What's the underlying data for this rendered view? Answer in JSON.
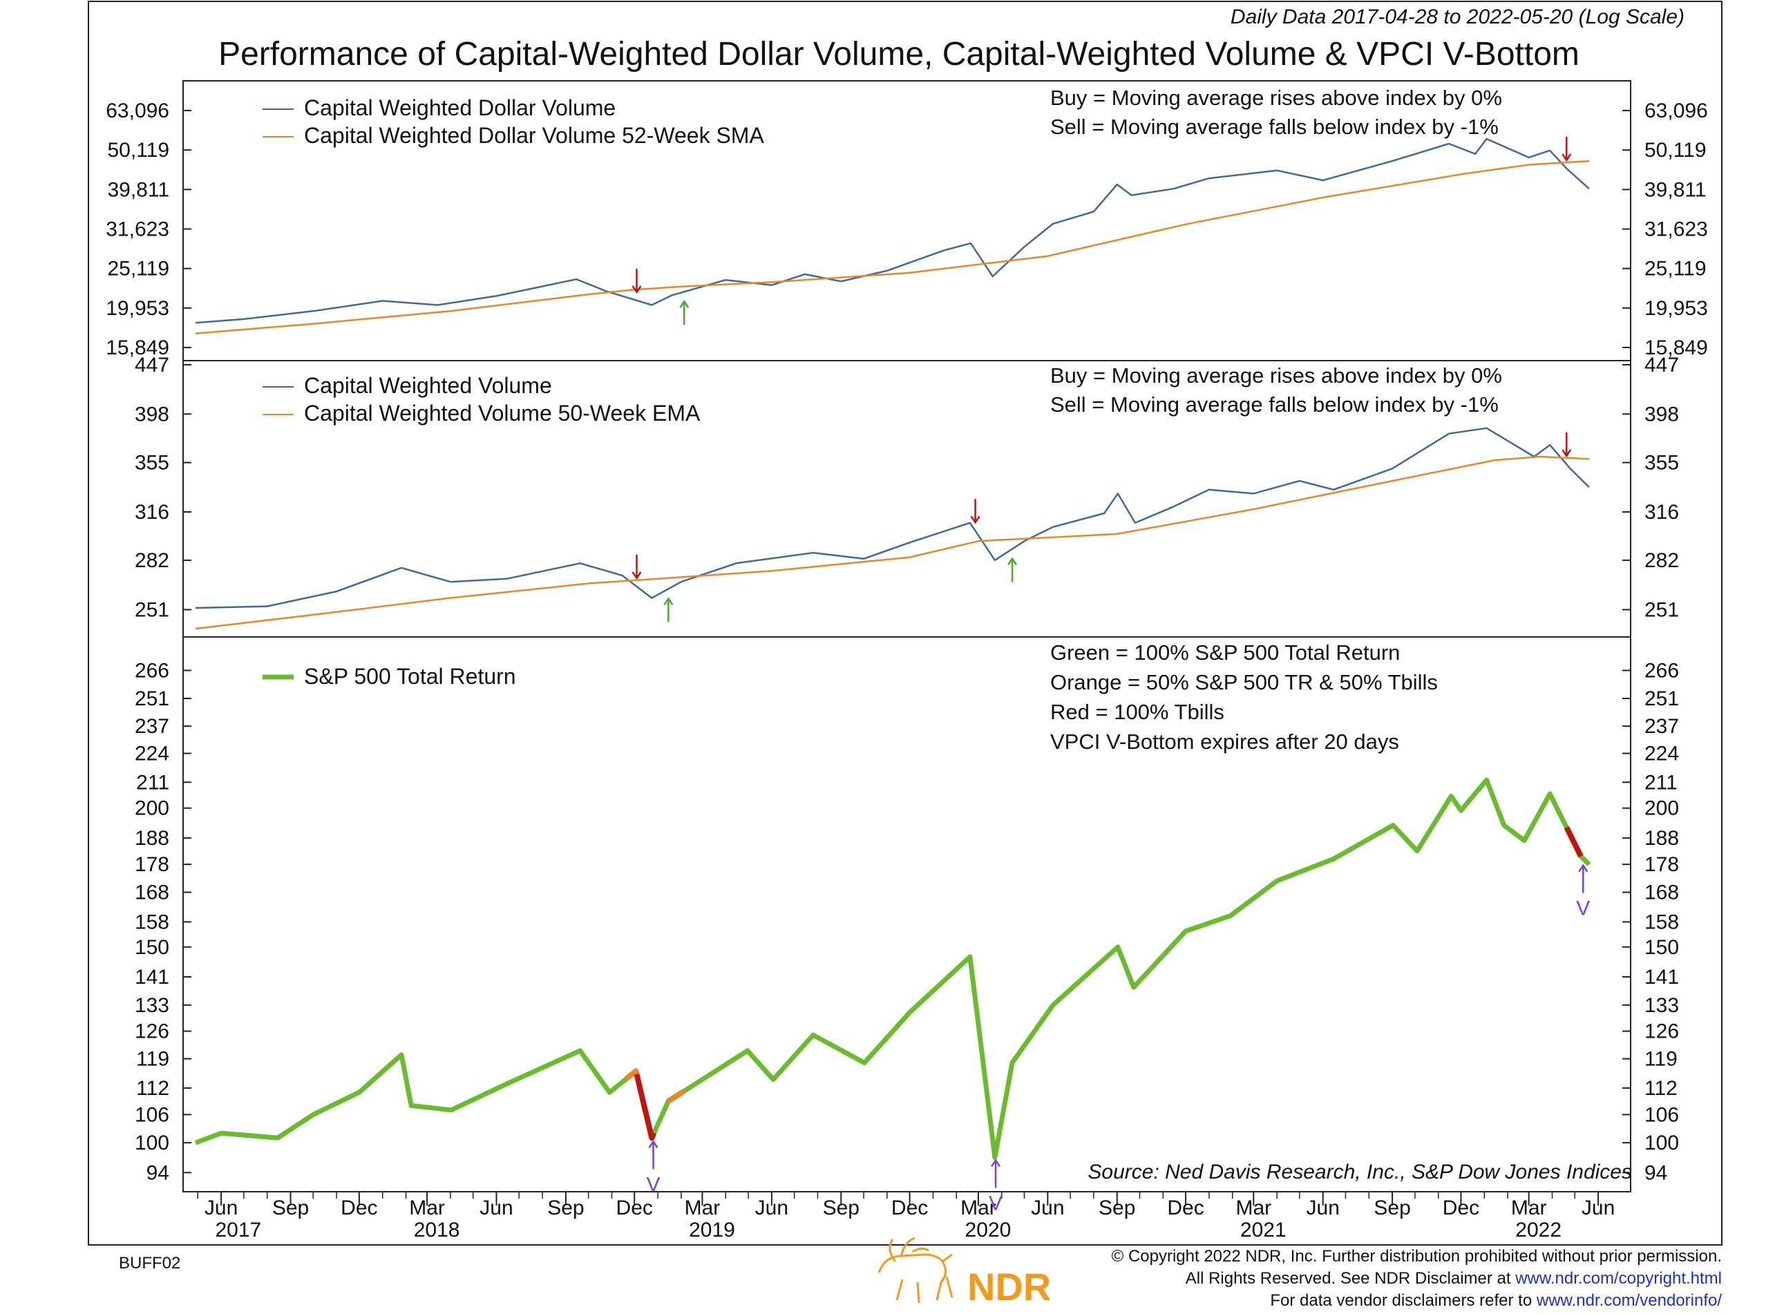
{
  "header": {
    "subtitle": "Daily Data 2017-04-28 to 2022-05-20 (Log Scale)",
    "title": "Performance of Capital-Weighted Dollar Volume, Capital-Weighted Volume & VPCI V-Bottom"
  },
  "colors": {
    "index_line": "#3d6a9c",
    "moving_average": "#e8862a",
    "sp_green": "#6abb2e",
    "sp_orange": "#e8862a",
    "sp_red": "#c0150e",
    "buy_arrow": "#4aa832",
    "sell_arrow": "#c0150e",
    "vbottom_marker": "#7a3fe0",
    "ndr_orange": "#f29a1d",
    "link_blue": "#1a2fd0"
  },
  "x_axis": {
    "months": [
      "Jun",
      "Sep",
      "Dec",
      "Mar",
      "Jun",
      "Sep",
      "Dec",
      "Mar",
      "Jun",
      "Sep",
      "Dec",
      "Mar",
      "Jun",
      "Sep",
      "Dec",
      "Mar",
      "Jun",
      "Sep",
      "Dec",
      "Mar",
      "Jun"
    ],
    "years": [
      "2017",
      "2018",
      "2019",
      "2020",
      "2021",
      "2022"
    ]
  },
  "panel1": {
    "legend": [
      "Capital Weighted Dollar Volume",
      "Capital Weighted Dollar Volume 52-Week SMA"
    ],
    "rule_buy": "Buy = Moving average rises above index by 0%",
    "rule_sell": "Sell = Moving average falls below index by -1%",
    "tick_labels": [
      "63,096",
      "50,119",
      "39,811",
      "31,623",
      "25,119",
      "19,953",
      "15,849"
    ]
  },
  "panel2": {
    "legend": [
      "Capital Weighted Volume",
      "Capital Weighted Volume 50-Week EMA"
    ],
    "rule_buy": "Buy = Moving average rises above index by 0%",
    "rule_sell": "Sell = Moving average falls below index by -1%",
    "tick_labels": [
      "447",
      "398",
      "355",
      "316",
      "282",
      "251"
    ]
  },
  "panel3": {
    "legend": [
      "S&P 500 Total Return"
    ],
    "notes": [
      "Green = 100% S&P 500 Total Return",
      "Orange = 50% S&P 500 TR & 50% Tbills",
      "Red = 100% Tbills",
      "VPCI V-Bottom expires after 20 days"
    ],
    "tick_labels": [
      "266",
      "251",
      "237",
      "224",
      "211",
      "200",
      "188",
      "178",
      "168",
      "158",
      "150",
      "141",
      "133",
      "126",
      "119",
      "112",
      "106",
      "100",
      "94"
    ],
    "vbottom_label": "V",
    "source": "Source:   Ned Davis Research, Inc., S&P Dow Jones Indices"
  },
  "footer": {
    "code": "BUFF02",
    "logo_text": "NDR",
    "copyright_line1": "© Copyright 2022 NDR, Inc. Further distribution prohibited without prior permission.",
    "copyright_line2_prefix": "All Rights Reserved. See NDR Disclaimer at ",
    "copyright_line2_link": "www.ndr.com/copyright.html",
    "copyright_line3_prefix": "For data vendor disclaimers refer to ",
    "copyright_line3_link": "www.ndr.com/vendorinfo/"
  },
  "chart_data": [
    {
      "type": "line",
      "scale": "log",
      "x_range": [
        "2017-04-28",
        "2022-05-20"
      ],
      "ylim": [
        15849,
        63096
      ],
      "series": [
        {
          "name": "Capital Weighted Dollar Volume",
          "points": [
            [
              "2017-04-28",
              18300
            ],
            [
              "2017-07-01",
              18700
            ],
            [
              "2017-10-01",
              19600
            ],
            [
              "2018-01-01",
              20800
            ],
            [
              "2018-03-15",
              20300
            ],
            [
              "2018-06-01",
              21400
            ],
            [
              "2018-09-15",
              23600
            ],
            [
              "2018-10-25",
              22000
            ],
            [
              "2018-12-24",
              20300
            ],
            [
              "2019-01-20",
              21500
            ],
            [
              "2019-04-01",
              23500
            ],
            [
              "2019-06-01",
              22800
            ],
            [
              "2019-07-15",
              24300
            ],
            [
              "2019-09-01",
              23300
            ],
            [
              "2019-11-01",
              24800
            ],
            [
              "2020-01-15",
              27900
            ],
            [
              "2020-02-20",
              29100
            ],
            [
              "2020-03-20",
              24000
            ],
            [
              "2020-05-01",
              28500
            ],
            [
              "2020-06-08",
              32600
            ],
            [
              "2020-08-01",
              35000
            ],
            [
              "2020-09-01",
              41000
            ],
            [
              "2020-09-20",
              38500
            ],
            [
              "2020-11-15",
              40000
            ],
            [
              "2021-01-01",
              42500
            ],
            [
              "2021-04-01",
              44500
            ],
            [
              "2021-06-01",
              42000
            ],
            [
              "2021-09-01",
              47000
            ],
            [
              "2021-11-15",
              52000
            ],
            [
              "2021-12-20",
              49000
            ],
            [
              "2022-01-04",
              53500
            ],
            [
              "2022-03-01",
              48000
            ],
            [
              "2022-03-29",
              50000
            ],
            [
              "2022-04-20",
              45000
            ],
            [
              "2022-05-20",
              40000
            ]
          ]
        },
        {
          "name": "Capital Weighted Dollar Volume 52-Week SMA",
          "points": [
            [
              "2017-04-28",
              17200
            ],
            [
              "2017-10-01",
              18200
            ],
            [
              "2018-04-01",
              19600
            ],
            [
              "2018-10-01",
              21600
            ],
            [
              "2018-12-01",
              22200
            ],
            [
              "2019-02-01",
              22600
            ],
            [
              "2019-06-01",
              23200
            ],
            [
              "2019-12-01",
              24500
            ],
            [
              "2020-06-01",
              27000
            ],
            [
              "2020-12-01",
              32500
            ],
            [
              "2021-06-01",
              38000
            ],
            [
              "2021-12-01",
              43500
            ],
            [
              "2022-03-01",
              46000
            ],
            [
              "2022-05-20",
              47000
            ]
          ]
        }
      ]
    },
    {
      "type": "line",
      "scale": "log",
      "x_range": [
        "2017-04-28",
        "2022-05-20"
      ],
      "ylim": [
        240,
        447
      ],
      "series": [
        {
          "name": "Capital Weighted Volume",
          "points": [
            [
              "2017-04-28",
              252
            ],
            [
              "2017-08-01",
              253
            ],
            [
              "2017-11-01",
              262
            ],
            [
              "2018-01-26",
              277
            ],
            [
              "2018-04-01",
              268
            ],
            [
              "2018-06-15",
              270
            ],
            [
              "2018-09-20",
              280
            ],
            [
              "2018-11-15",
              272
            ],
            [
              "2018-12-24",
              258
            ],
            [
              "2019-02-01",
              268
            ],
            [
              "2019-04-15",
              280
            ],
            [
              "2019-07-26",
              287
            ],
            [
              "2019-10-01",
              283
            ],
            [
              "2019-12-01",
              294
            ],
            [
              "2020-02-19",
              308
            ],
            [
              "2020-03-23",
              282
            ],
            [
              "2020-05-01",
              295
            ],
            [
              "2020-06-08",
              305
            ],
            [
              "2020-08-15",
              315
            ],
            [
              "2020-09-02",
              330
            ],
            [
              "2020-09-25",
              308
            ],
            [
              "2020-11-15",
              320
            ],
            [
              "2021-01-01",
              333
            ],
            [
              "2021-03-01",
              330
            ],
            [
              "2021-05-01",
              340
            ],
            [
              "2021-06-15",
              333
            ],
            [
              "2021-09-01",
              350
            ],
            [
              "2021-11-15",
              380
            ],
            [
              "2022-01-04",
              385
            ],
            [
              "2022-03-08",
              360
            ],
            [
              "2022-03-29",
              370
            ],
            [
              "2022-04-25",
              350
            ],
            [
              "2022-05-20",
              335
            ]
          ]
        },
        {
          "name": "Capital Weighted Volume 50-Week EMA",
          "points": [
            [
              "2017-04-28",
              240
            ],
            [
              "2017-10-01",
              248
            ],
            [
              "2018-04-01",
              258
            ],
            [
              "2018-10-01",
              267
            ],
            [
              "2019-01-01",
              270
            ],
            [
              "2019-06-01",
              275
            ],
            [
              "2019-12-01",
              284
            ],
            [
              "2020-03-01",
              295
            ],
            [
              "2020-09-01",
              300
            ],
            [
              "2021-03-01",
              318
            ],
            [
              "2021-09-01",
              340
            ],
            [
              "2022-01-15",
              357
            ],
            [
              "2022-03-15",
              360
            ],
            [
              "2022-05-20",
              358
            ]
          ]
        }
      ],
      "signals": [
        {
          "type": "sell",
          "date": "2018-12-04"
        },
        {
          "type": "buy",
          "date": "2019-01-15"
        },
        {
          "type": "sell",
          "date": "2020-02-26"
        },
        {
          "type": "buy",
          "date": "2020-04-15"
        },
        {
          "type": "sell",
          "date": "2022-04-20"
        }
      ]
    },
    {
      "type": "line",
      "scale": "log",
      "x_range": [
        "2017-04-28",
        "2022-05-20"
      ],
      "ylim": [
        91,
        270
      ],
      "series": [
        {
          "name": "S&P 500 Total Return",
          "points": [
            [
              "2017-04-28",
              100
            ],
            [
              "2017-06-01",
              102
            ],
            [
              "2017-08-15",
              101
            ],
            [
              "2017-10-01",
              106
            ],
            [
              "2017-12-01",
              111
            ],
            [
              "2018-01-26",
              120
            ],
            [
              "2018-02-08",
              108
            ],
            [
              "2018-04-02",
              107
            ],
            [
              "2018-06-15",
              113
            ],
            [
              "2018-09-20",
              121
            ],
            [
              "2018-10-29",
              111
            ],
            [
              "2018-12-03",
              116
            ],
            [
              "2018-12-24",
              101
            ],
            [
              "2019-01-15",
              109
            ],
            [
              "2019-04-30",
              121
            ],
            [
              "2019-06-03",
              114
            ],
            [
              "2019-07-26",
              125
            ],
            [
              "2019-10-02",
              118
            ],
            [
              "2019-12-01",
              131
            ],
            [
              "2020-02-19",
              147
            ],
            [
              "2020-03-23",
              97
            ],
            [
              "2020-04-15",
              118
            ],
            [
              "2020-06-08",
              133
            ],
            [
              "2020-09-02",
              150
            ],
            [
              "2020-09-23",
              138
            ],
            [
              "2020-12-01",
              155
            ],
            [
              "2021-01-29",
              160
            ],
            [
              "2021-04-01",
              172
            ],
            [
              "2021-06-15",
              180
            ],
            [
              "2021-09-02",
              193
            ],
            [
              "2021-10-04",
              183
            ],
            [
              "2021-11-18",
              205
            ],
            [
              "2021-12-01",
              199
            ],
            [
              "2022-01-04",
              212
            ],
            [
              "2022-01-27",
              193
            ],
            [
              "2022-02-23",
              187
            ],
            [
              "2022-03-29",
              206
            ],
            [
              "2022-05-09",
              181
            ],
            [
              "2022-05-20",
              178
            ]
          ]
        }
      ],
      "allocation_segments": [
        {
          "color": "orange",
          "from": "2018-11-20",
          "to": "2018-12-04"
        },
        {
          "color": "red",
          "from": "2018-12-04",
          "to": "2018-12-27"
        },
        {
          "color": "orange",
          "from": "2019-01-15",
          "to": "2019-02-05"
        },
        {
          "color": "red",
          "from": "2022-04-20",
          "to": "2022-05-09"
        }
      ],
      "v_bottoms": [
        "2018-12-26",
        "2020-03-24",
        "2022-05-12"
      ]
    }
  ]
}
